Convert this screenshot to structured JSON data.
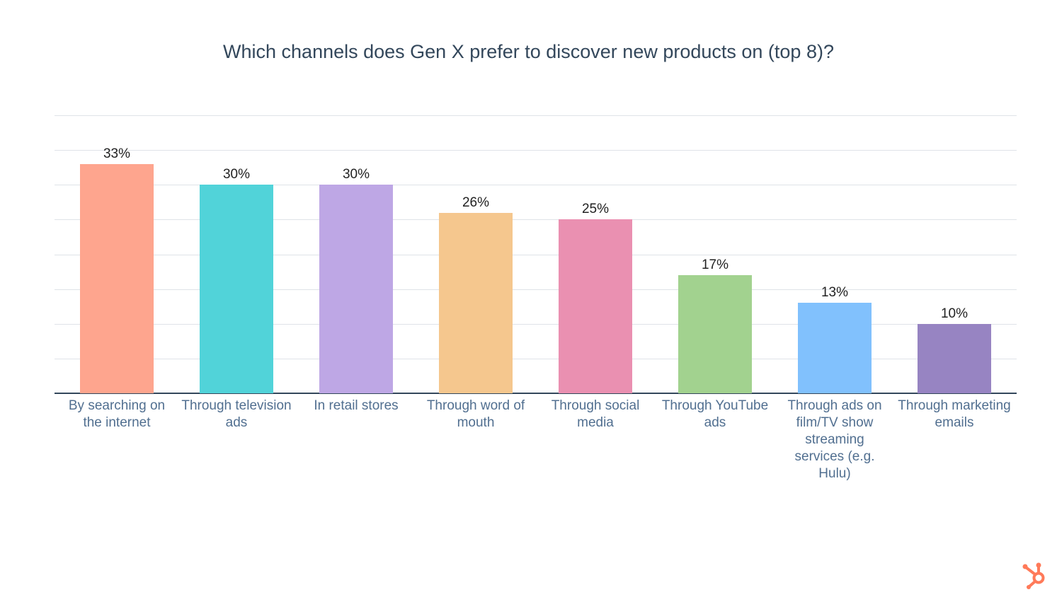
{
  "chart_data": {
    "type": "bar",
    "title": "Which channels does Gen X prefer to discover new products on (top 8)?",
    "categories": [
      "By searching on the internet",
      "Through television ads",
      "In retail stores",
      "Through word of mouth",
      "Through social media",
      "Through YouTube ads",
      "Through ads on film/TV show streaming services (e.g. Hulu)",
      "Through marketing emails"
    ],
    "values": [
      33,
      30,
      30,
      26,
      25,
      17,
      13,
      10
    ],
    "data_labels": [
      "33%",
      "30%",
      "30%",
      "26%",
      "25%",
      "17%",
      "13%",
      "10%"
    ],
    "colors": [
      "#fea58e",
      "#51d3d9",
      "#bea7e5",
      "#f5c78e",
      "#ea90b1",
      "#a2d28f",
      "#81c1fd",
      "#9784c2"
    ],
    "xlabel": "",
    "ylabel": "",
    "ylim": [
      0,
      40
    ],
    "grid_step": 5,
    "grid": true,
    "y_tick_labels_shown": false,
    "legend": "none"
  },
  "branding": {
    "logo": "hubspot-sprocket-logo",
    "logo_color": "#ff7a59"
  }
}
